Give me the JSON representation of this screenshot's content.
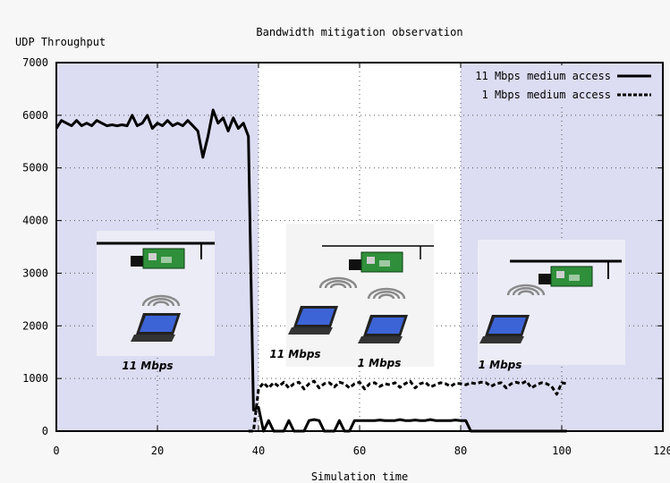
{
  "chart_data": {
    "type": "line",
    "title": "Bandwidth mitigation observation",
    "ylabel": "UDP Throughput",
    "xlabel": "Simulation time",
    "xlim": [
      0,
      120
    ],
    "ylim": [
      0,
      7000
    ],
    "xticks": [
      "0",
      "20",
      "40",
      "60",
      "80",
      "100",
      "120"
    ],
    "yticks": [
      "0",
      "1000",
      "2000",
      "3000",
      "4000",
      "5000",
      "6000",
      "7000"
    ],
    "grid": true,
    "legend_position": "top-right",
    "colors": {
      "shaded_phase": "#dcdcf2",
      "middle_phase": "#ffffff",
      "line": "#000000"
    },
    "phases": [
      {
        "x0": 0,
        "x1": 40,
        "shaded": true,
        "caption": "11 Mbps"
      },
      {
        "x0": 40,
        "x1": 80,
        "shaded": false,
        "captions": [
          "11 Mbps",
          "1 Mbps"
        ]
      },
      {
        "x0": 80,
        "x1": 120,
        "shaded": true,
        "caption": "1 Mbps"
      }
    ],
    "series": [
      {
        "name": "11 Mbps medium access",
        "style": "solid",
        "x": [
          0,
          1,
          2,
          3,
          4,
          5,
          6,
          7,
          8,
          9,
          10,
          11,
          12,
          13,
          14,
          15,
          16,
          17,
          18,
          19,
          20,
          21,
          22,
          23,
          24,
          25,
          26,
          27,
          28,
          29,
          30,
          31,
          32,
          33,
          34,
          35,
          36,
          37,
          38,
          38.5,
          39,
          40,
          41,
          42,
          43,
          44,
          45,
          46,
          47,
          48,
          49,
          50,
          51,
          52,
          53,
          54,
          55,
          56,
          57,
          58,
          59,
          60,
          61,
          62,
          63,
          64,
          65,
          66,
          67,
          68,
          69,
          70,
          71,
          72,
          73,
          74,
          75,
          76,
          77,
          78,
          79,
          80,
          81,
          82,
          83,
          85,
          90,
          95,
          100,
          101
        ],
        "y": [
          5750,
          5900,
          5850,
          5800,
          5900,
          5800,
          5850,
          5800,
          5900,
          5850,
          5800,
          5820,
          5800,
          5820,
          5800,
          6000,
          5800,
          5850,
          6000,
          5750,
          5850,
          5800,
          5900,
          5800,
          5850,
          5800,
          5900,
          5800,
          5700,
          5200,
          5600,
          6100,
          5850,
          5950,
          5700,
          5950,
          5750,
          5850,
          5600,
          3000,
          400,
          450,
          0,
          200,
          0,
          0,
          0,
          200,
          0,
          0,
          0,
          200,
          220,
          200,
          0,
          0,
          0,
          200,
          0,
          0,
          200,
          200,
          200,
          200,
          200,
          210,
          200,
          200,
          200,
          220,
          200,
          200,
          210,
          200,
          200,
          220,
          200,
          200,
          200,
          200,
          210,
          200,
          200,
          0,
          0,
          0,
          0,
          0,
          0,
          0
        ]
      },
      {
        "name": "1 Mbps medium access",
        "style": "dashed",
        "x": [
          38,
          39,
          39.5,
          40,
          41,
          42,
          43,
          44,
          45,
          46,
          47,
          48,
          49,
          50,
          51,
          52,
          53,
          54,
          55,
          56,
          57,
          58,
          59,
          60,
          61,
          62,
          63,
          64,
          65,
          66,
          67,
          68,
          69,
          70,
          71,
          72,
          73,
          74,
          75,
          76,
          77,
          78,
          79,
          80,
          81,
          82,
          83,
          84,
          85,
          86,
          87,
          88,
          89,
          90,
          91,
          92,
          93,
          94,
          95,
          96,
          97,
          98,
          99,
          100,
          101
        ],
        "y": [
          0,
          0,
          400,
          800,
          920,
          820,
          920,
          850,
          930,
          820,
          900,
          930,
          800,
          900,
          950,
          820,
          900,
          920,
          840,
          930,
          900,
          820,
          900,
          930,
          800,
          900,
          920,
          850,
          900,
          880,
          920,
          830,
          900,
          950,
          820,
          900,
          930,
          840,
          880,
          920,
          900,
          850,
          910,
          900,
          880,
          920,
          900,
          930,
          920,
          850,
          900,
          920,
          820,
          900,
          930,
          900,
          950,
          820,
          880,
          920,
          900,
          850,
          700,
          920,
          900
        ]
      }
    ]
  }
}
